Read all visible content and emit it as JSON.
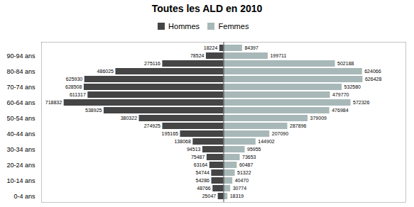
{
  "chart_data": {
    "type": "bar",
    "orientation": "horizontal",
    "title": "Toutes les ALD en 2010",
    "categories": [
      null,
      "90-94 ans",
      null,
      "80-84 ans",
      null,
      "70-74 ans",
      null,
      "60-64 ans",
      null,
      "50-54 ans",
      null,
      "40-44 ans",
      null,
      "30-34 ans",
      null,
      "20-24 ans",
      null,
      "10-14 ans",
      null,
      "0-4 ans"
    ],
    "series": [
      {
        "name": "Hommes",
        "color": "#454545",
        "values": [
          18224,
          78524,
          275116,
          486025,
          625930,
          628508,
          611317,
          718832,
          538925,
          380322,
          274925,
          195165,
          138068,
          94513,
          75487,
          63164,
          54744,
          54286,
          48766,
          25047
        ]
      },
      {
        "name": "Femmes",
        "color": "#a8b8b8",
        "values": [
          84397,
          199711,
          502188,
          624066,
          626428,
          532580,
          479770,
          572326,
          476984,
          379009,
          287896,
          207090,
          144902,
          95955,
          73653,
          60487,
          51322,
          40470,
          30774,
          18319
        ]
      }
    ],
    "xlim": [
      -820000,
      820000
    ],
    "data_labels": true,
    "tick_labels": "y",
    "grid": false,
    "legend": "top"
  }
}
